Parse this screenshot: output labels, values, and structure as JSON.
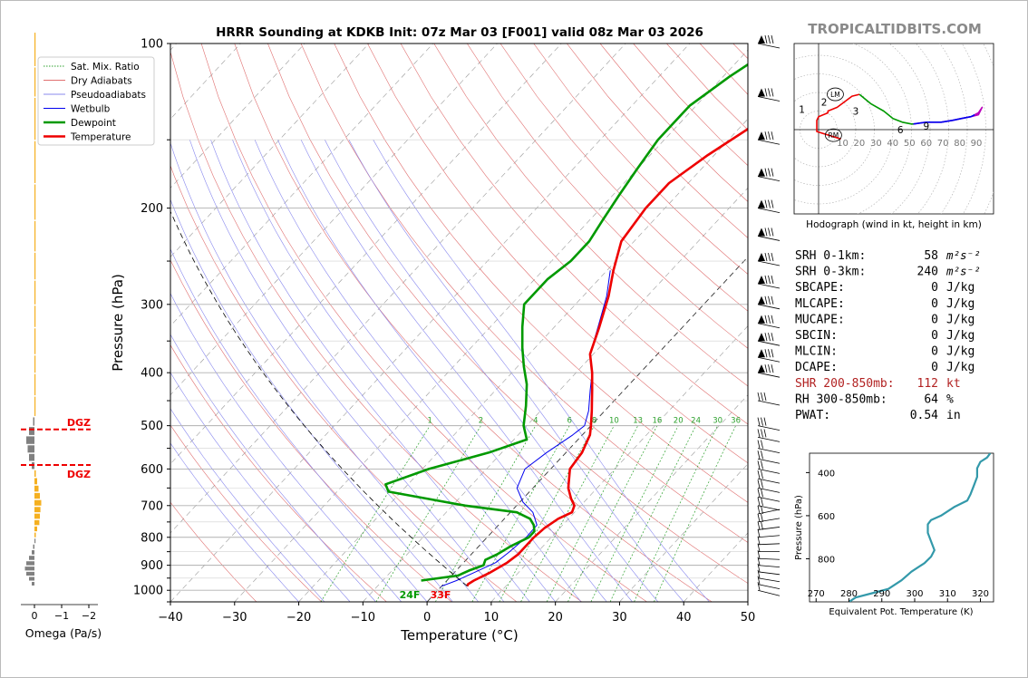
{
  "brand": "TROPICALTIDBITS.COM",
  "chart_data": [
    {
      "type": "line",
      "chart": "skew-t",
      "title": "HRRR Sounding at KDKB Init: 07z Mar 03 [F001] valid 08z Mar 03 2026",
      "xlabel": "Temperature (°C)",
      "ylabel": "Pressure (hPa)",
      "xlim": [
        -40,
        50
      ],
      "ylim": [
        1050,
        100
      ],
      "y_scale": "log",
      "x_ticks": [
        "−40",
        "−30",
        "−20",
        "−10",
        "0",
        "10",
        "20",
        "30",
        "40",
        "50"
      ],
      "y_ticks": [
        "100",
        "200",
        "300",
        "400",
        "500",
        "600",
        "700",
        "800",
        "900",
        "1000"
      ],
      "legend": {
        "placement": "top-left",
        "entries": [
          {
            "label": "Sat. Mix. Ratio",
            "color": "#2ca02c",
            "style": "dotted"
          },
          {
            "label": "Dry Adiabats",
            "color": "#e07070",
            "style": "solid"
          },
          {
            "label": "Pseudoadiabats",
            "color": "#8888ee",
            "style": "solid"
          },
          {
            "label": "Wetbulb",
            "color": "#0000ee",
            "style": "solid"
          },
          {
            "label": "Dewpoint",
            "color": "#009900",
            "style": "solid"
          },
          {
            "label": "Temperature",
            "color": "#ee0000",
            "style": "solid"
          }
        ]
      },
      "mixing_ratio_labels": [
        "1",
        "2",
        "4",
        "6",
        "8",
        "10",
        "13",
        "16",
        "20",
        "24",
        "30",
        "36"
      ],
      "series": [
        {
          "name": "Temperature",
          "color": "#ee0000",
          "points": [
            [
              983,
              4
            ],
            [
              975,
              3.8
            ],
            [
              960,
              4.2
            ],
            [
              930,
              5.5
            ],
            [
              890,
              6.8
            ],
            [
              860,
              7.3
            ],
            [
              800,
              7.3
            ],
            [
              770,
              7.6
            ],
            [
              740,
              8.4
            ],
            [
              720,
              9.6
            ],
            [
              700,
              9.0
            ],
            [
              680,
              7.5
            ],
            [
              650,
              5.5
            ],
            [
              600,
              3.0
            ],
            [
              560,
              2.5
            ],
            [
              520,
              1.2
            ],
            [
              500,
              0
            ],
            [
              470,
              -2
            ],
            [
              430,
              -5
            ],
            [
              400,
              -7.5
            ],
            [
              370,
              -10.5
            ],
            [
              330,
              -13
            ],
            [
              290,
              -16
            ],
            [
              260,
              -19
            ],
            [
              230,
              -22
            ],
            [
              200,
              -23
            ],
            [
              180,
              -23
            ],
            [
              160,
              -21
            ],
            [
              140,
              -18
            ],
            [
              130,
              -15
            ],
            [
              120,
              -13
            ],
            [
              110,
              -11
            ],
            [
              100,
              -10
            ]
          ]
        },
        {
          "name": "Dewpoint",
          "color": "#009900",
          "points": [
            [
              960,
              -4
            ],
            [
              940,
              1
            ],
            [
              920,
              2
            ],
            [
              900,
              3.5
            ],
            [
              880,
              3
            ],
            [
              860,
              4
            ],
            [
              830,
              5
            ],
            [
              800,
              6.5
            ],
            [
              780,
              6.5
            ],
            [
              760,
              5.5
            ],
            [
              740,
              4
            ],
            [
              720,
              1
            ],
            [
              700,
              -8
            ],
            [
              660,
              -22
            ],
            [
              640,
              -23.5
            ],
            [
              600,
              -19
            ],
            [
              560,
              -12
            ],
            [
              530,
              -8
            ],
            [
              500,
              -10.5
            ],
            [
              460,
              -13
            ],
            [
              420,
              -16
            ],
            [
              390,
              -19
            ],
            [
              360,
              -22
            ],
            [
              330,
              -25
            ],
            [
              300,
              -28
            ],
            [
              270,
              -28
            ],
            [
              250,
              -27
            ],
            [
              230,
              -27
            ],
            [
              210,
              -28
            ],
            [
              190,
              -29
            ],
            [
              170,
              -30
            ],
            [
              150,
              -31
            ],
            [
              130,
              -31
            ],
            [
              115,
              -29
            ],
            [
              100,
              -26
            ]
          ]
        },
        {
          "name": "Wetbulb",
          "color": "#0000ee",
          "points": [
            [
              983,
              0
            ],
            [
              960,
              1.5
            ],
            [
              930,
              3
            ],
            [
              890,
              5
            ],
            [
              850,
              5.6
            ],
            [
              800,
              6.1
            ],
            [
              760,
              6
            ],
            [
              720,
              3.5
            ],
            [
              690,
              0.5
            ],
            [
              650,
              -2.5
            ],
            [
              600,
              -4
            ],
            [
              560,
              -3
            ],
            [
              520,
              -1.5
            ],
            [
              500,
              -1
            ],
            [
              470,
              -2.5
            ],
            [
              430,
              -5.3
            ],
            [
              400,
              -7.5
            ],
            [
              370,
              -10.5
            ],
            [
              330,
              -13.2
            ],
            [
              290,
              -16.3
            ],
            [
              260,
              -19.5
            ]
          ]
        }
      ],
      "surface_labels": {
        "dewpoint": "24F",
        "temperature": "33F"
      },
      "wind_barbs": [
        1000,
        975,
        950,
        925,
        900,
        875,
        850,
        825,
        800,
        775,
        750,
        725,
        700,
        675,
        650,
        625,
        600,
        575,
        550,
        525,
        500,
        450,
        400,
        375,
        350,
        325,
        300,
        275,
        250,
        225,
        200,
        175,
        150,
        125,
        100
      ]
    },
    {
      "type": "bar",
      "chart": "omega-profile",
      "xlabel": "Omega (Pa/s)",
      "x_ticks": [
        "0",
        "−1",
        "−2"
      ],
      "dgz_label": "DGZ",
      "dgz_bounds_hpa": [
        508,
        590
      ],
      "omega": [
        [
          980,
          0.1
        ],
        [
          960,
          0.2
        ],
        [
          940,
          0.3
        ],
        [
          920,
          0.35
        ],
        [
          900,
          0.3
        ],
        [
          880,
          0.2
        ],
        [
          860,
          0.1
        ],
        [
          840,
          0.05
        ],
        [
          820,
          0
        ],
        [
          800,
          -0.05
        ],
        [
          780,
          -0.1
        ],
        [
          760,
          -0.18
        ],
        [
          740,
          -0.2
        ],
        [
          720,
          -0.22
        ],
        [
          700,
          -0.25
        ],
        [
          680,
          -0.2
        ],
        [
          660,
          -0.15
        ],
        [
          640,
          -0.1
        ],
        [
          620,
          -0.05
        ],
        [
          600,
          0.1
        ],
        [
          580,
          0.2
        ],
        [
          560,
          0.25
        ],
        [
          540,
          0.3
        ],
        [
          520,
          0.2
        ],
        [
          500,
          0.05
        ],
        [
          480,
          -0.02
        ],
        [
          440,
          -0.03
        ],
        [
          400,
          -0.04
        ],
        [
          370,
          -0.04
        ],
        [
          330,
          -0.03
        ],
        [
          300,
          -0.02
        ],
        [
          270,
          -0.03
        ],
        [
          240,
          -0.02
        ],
        [
          210,
          -0.02
        ],
        [
          180,
          -0.02
        ],
        [
          150,
          -0.02
        ],
        [
          125,
          -0.02
        ],
        [
          110,
          -0.02
        ]
      ]
    },
    {
      "type": "line",
      "chart": "hodograph",
      "caption": "Hodograph (wind in kt, height in km)",
      "ring_labels": [
        "10",
        "20",
        "30",
        "40",
        "50",
        "60",
        "70",
        "80",
        "90"
      ],
      "height_labels": [
        "1",
        "2",
        "3",
        "6",
        "9"
      ],
      "markers": [
        "LM",
        "RM"
      ],
      "segments": [
        {
          "color": "#ee0000",
          "points": [
            [
              12,
              -5
            ],
            [
              -1,
              -1
            ],
            [
              -1,
              5
            ],
            [
              0,
              7
            ],
            [
              5,
              9
            ],
            [
              5,
              10
            ],
            [
              10,
              12
            ],
            [
              18,
              18
            ],
            [
              22,
              19
            ]
          ]
        },
        {
          "color": "#009900",
          "points": [
            [
              22,
              19
            ],
            [
              28,
              14
            ],
            [
              35,
              10
            ],
            [
              40,
              6
            ],
            [
              45,
              4
            ],
            [
              50,
              3
            ],
            [
              51,
              3
            ]
          ]
        },
        {
          "color": "#bb00bb",
          "points": [
            [
              51,
              3
            ],
            [
              58,
              4
            ],
            [
              66,
              4
            ],
            [
              72,
              5
            ],
            [
              77,
              6
            ],
            [
              82,
              7
            ],
            [
              86,
              8
            ],
            [
              88,
              12
            ],
            [
              86,
              9
            ],
            [
              84,
              8
            ]
          ]
        },
        {
          "color": "#0000ee",
          "points": [
            [
              84,
              8
            ],
            [
              82,
              7
            ],
            [
              77,
              6
            ],
            [
              72,
              5
            ],
            [
              66,
              4
            ],
            [
              58,
              4
            ],
            [
              51,
              3
            ]
          ]
        }
      ],
      "path": [
        [
          1,
          2.5,
          -2
        ],
        [
          2,
          2,
          8
        ],
        [
          3,
          4,
          6
        ],
        [
          6,
          3,
          1
        ],
        [
          9,
          2,
          4
        ]
      ]
    },
    {
      "type": "line",
      "chart": "theta-e-profile",
      "xlabel": "Equivalent Pot. Temperature (K)",
      "ylabel": "Pressure (hPa)",
      "x_ticks": [
        "270",
        "280",
        "290",
        "300",
        "310",
        "320"
      ],
      "y_ticks": [
        "400",
        "600",
        "800"
      ],
      "xlim": [
        268,
        324
      ],
      "ylim": [
        1000,
        310
      ],
      "color": "#3399aa",
      "points": [
        [
          1000,
          280
        ],
        [
          980,
          282
        ],
        [
          960,
          287
        ],
        [
          940,
          292
        ],
        [
          900,
          296
        ],
        [
          860,
          299
        ],
        [
          820,
          303
        ],
        [
          790,
          305
        ],
        [
          760,
          306
        ],
        [
          720,
          305
        ],
        [
          680,
          304
        ],
        [
          640,
          304
        ],
        [
          620,
          305
        ],
        [
          600,
          308
        ],
        [
          560,
          312
        ],
        [
          530,
          316
        ],
        [
          500,
          317
        ],
        [
          460,
          318
        ],
        [
          420,
          319
        ],
        [
          380,
          319
        ],
        [
          350,
          320
        ],
        [
          330,
          322
        ],
        [
          310,
          323
        ]
      ]
    }
  ],
  "stats": [
    {
      "label": "SRH 0-1km:",
      "value": "58",
      "unit": "m²s⁻²",
      "highlight": false
    },
    {
      "label": "SRH 0-3km:",
      "value": "240",
      "unit": "m²s⁻²",
      "highlight": false
    },
    {
      "label": "SBCAPE:",
      "value": "0",
      "unit": "J/kg",
      "highlight": false
    },
    {
      "label": "MLCAPE:",
      "value": "0",
      "unit": "J/kg",
      "highlight": false
    },
    {
      "label": "MUCAPE:",
      "value": "0",
      "unit": "J/kg",
      "highlight": false
    },
    {
      "label": "SBCIN:",
      "value": "0",
      "unit": "J/kg",
      "highlight": false
    },
    {
      "label": "MLCIN:",
      "value": "0",
      "unit": "J/kg",
      "highlight": false
    },
    {
      "label": "DCAPE:",
      "value": "0",
      "unit": "J/kg",
      "highlight": false
    },
    {
      "label": "SHR 200-850mb:",
      "value": "112",
      "unit": "kt",
      "highlight": true
    },
    {
      "label": "RH 300-850mb:",
      "value": "64",
      "unit": "%",
      "highlight": false
    },
    {
      "label": "PWAT:",
      "value": "0.54",
      "unit": "in",
      "highlight": false
    }
  ]
}
